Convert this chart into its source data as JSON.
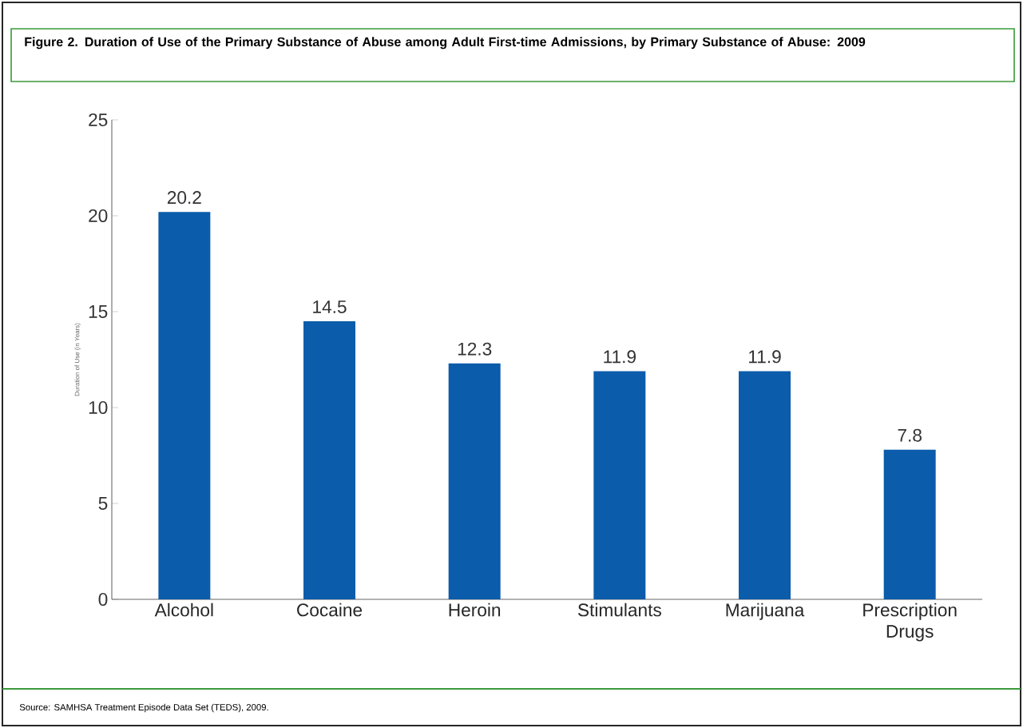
{
  "chart_data": {
    "type": "bar",
    "title": "Figure 2. Duration of Use of the Primary Substance of Abuse among Adult First-time Admissions, by Primary Substance of Abuse: 2009",
    "ylabel": "Duration of Use (in Years)",
    "categories": [
      "Alcohol",
      "Cocaine",
      "Heroin",
      "Stimulants",
      "Marijuana",
      "Prescription Drugs"
    ],
    "values": [
      20.2,
      14.5,
      12.3,
      11.9,
      11.9,
      7.8
    ],
    "color": "#0b5cab",
    "ylim": [
      0,
      25
    ],
    "yticks": [
      0,
      5,
      10,
      15,
      20,
      25
    ],
    "data_labels": true,
    "annotations": [
      "Source: SAMHSA Treatment Episode Data Set (TEDS), 2009."
    ]
  }
}
